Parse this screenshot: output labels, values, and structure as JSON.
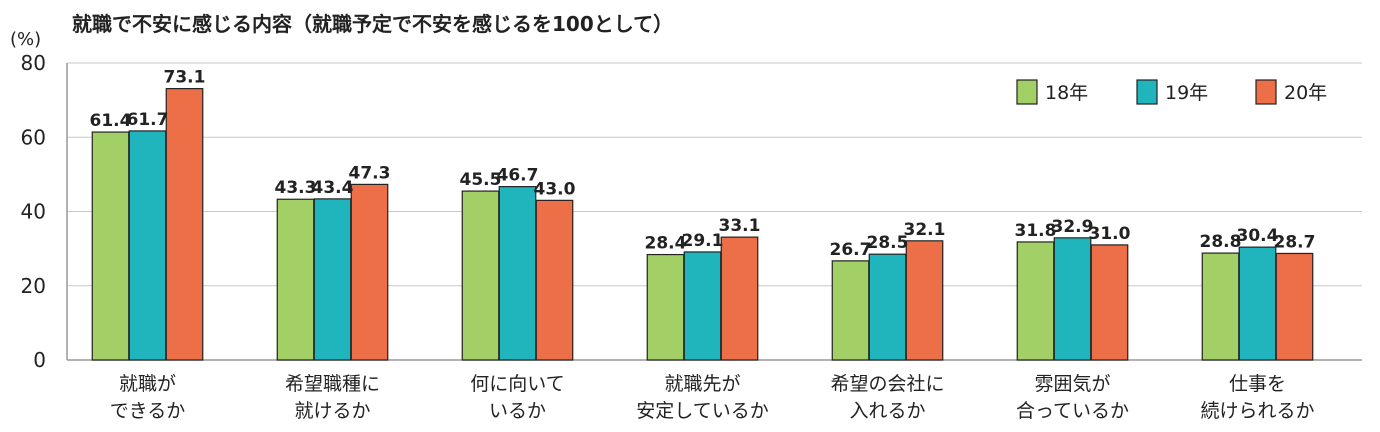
{
  "chart_data": {
    "type": "bar",
    "title": "就職で不安に感じる内容（就職予定で不安を感じるを100として）",
    "unit": "(%)",
    "ylim": [
      0,
      80
    ],
    "yticks": [
      "0",
      "20",
      "40",
      "60",
      "80"
    ],
    "grid": true,
    "legend_position": "top-right",
    "categories": [
      [
        "就職が",
        "できるか"
      ],
      [
        "希望職種に",
        "就けるか"
      ],
      [
        "何に向いて",
        "いるか"
      ],
      [
        "就職先が",
        "安定しているか"
      ],
      [
        "希望の会社に",
        "入れるか"
      ],
      [
        "雰囲気が",
        "合っているか"
      ],
      [
        "仕事を",
        "続けられるか"
      ]
    ],
    "series": [
      {
        "name": "18年",
        "color": "#a3cf67",
        "values": [
          61.4,
          43.3,
          45.5,
          28.4,
          26.7,
          31.8,
          28.8
        ],
        "labels": [
          "61.4",
          "43.3",
          "45.5",
          "28.4",
          "26.7",
          "31.8",
          "28.8"
        ]
      },
      {
        "name": "19年",
        "color": "#20b5bd",
        "values": [
          61.7,
          43.4,
          46.7,
          29.1,
          28.5,
          32.9,
          30.4
        ],
        "labels": [
          "61.7",
          "43.4",
          "46.7",
          "29.1",
          "28.5",
          "32.9",
          "30.4"
        ]
      },
      {
        "name": "20年",
        "color": "#ec6f48",
        "values": [
          73.1,
          47.3,
          43.0,
          33.1,
          32.1,
          31.0,
          28.7
        ],
        "labels": [
          "73.1",
          "47.3",
          "43.0",
          "33.1",
          "32.1",
          "31.0",
          "28.7"
        ]
      }
    ]
  }
}
